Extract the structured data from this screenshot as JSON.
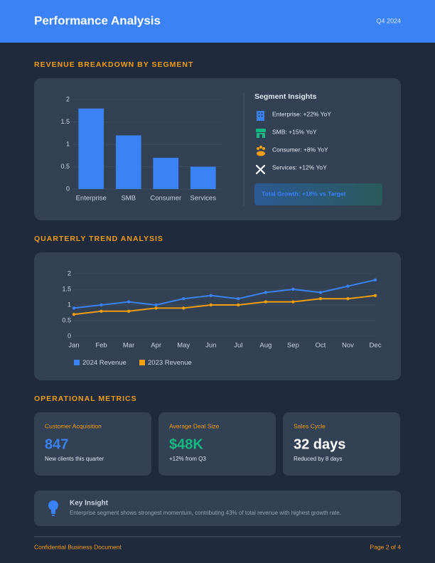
{
  "header": {
    "title": "Performance Analysis",
    "period": "Q4 2024"
  },
  "chart_data": [
    {
      "type": "bar",
      "title": "REVENUE BREAKDOWN BY SEGMENT",
      "categories": [
        "Enterprise",
        "SMB",
        "Consumer",
        "Services"
      ],
      "values": [
        1.8,
        1.2,
        0.7,
        0.5
      ],
      "color": "#3b82f6",
      "ylim": [
        0,
        2
      ],
      "yticks": [
        0,
        0.5,
        1,
        1.5,
        2
      ],
      "grid": true
    },
    {
      "type": "line",
      "title": "QUARTERLY TREND ANALYSIS",
      "categories": [
        "Jan",
        "Feb",
        "Mar",
        "Apr",
        "May",
        "Jun",
        "Jul",
        "Aug",
        "Sep",
        "Oct",
        "Nov",
        "Dec"
      ],
      "series": [
        {
          "name": "2024 Revenue",
          "color": "#3b82f6",
          "values": [
            0.9,
            1.0,
            1.1,
            1.0,
            1.2,
            1.3,
            1.2,
            1.4,
            1.5,
            1.4,
            1.6,
            1.8
          ]
        },
        {
          "name": "2023 Revenue",
          "color": "#f59e0b",
          "values": [
            0.7,
            0.8,
            0.8,
            0.9,
            0.9,
            1.0,
            1.0,
            1.1,
            1.1,
            1.2,
            1.2,
            1.3
          ]
        }
      ],
      "ylim": [
        0,
        2
      ],
      "yticks": [
        0,
        0.5,
        1,
        1.5,
        2
      ],
      "grid": true,
      "legend": "bottom-left"
    }
  ],
  "insights": {
    "title": "Segment Insights",
    "items": [
      "Enterprise: +22% YoY",
      "SMB: +15% YoY",
      "Consumer: +8% YoY",
      "Services: +12% YoY"
    ],
    "total": "Total Growth: +18% vs Target"
  },
  "metrics": {
    "title": "OPERATIONAL METRICS",
    "cards": [
      {
        "label": "Customer Acquisition",
        "value": "847",
        "note": "New clients this quarter"
      },
      {
        "label": "Average Deal Size",
        "value": "$48K",
        "note": "+12% from Q3"
      },
      {
        "label": "Sales Cycle",
        "value": "32 days",
        "note": "Reduced by 8 days"
      }
    ]
  },
  "key_insight": {
    "title": "Key Insight",
    "text": "Enterprise segment shows strongest momentum, contributing 43% of total revenue with highest growth rate."
  },
  "footer": {
    "left": "Confidential Business Document",
    "right": "Page 2 of 4"
  }
}
